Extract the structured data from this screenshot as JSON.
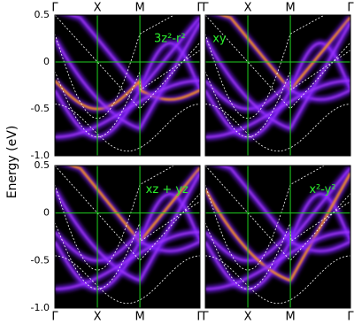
{
  "y_label": "Energy (eV)",
  "chart_data": [
    {
      "type": "spectral",
      "label": "3z²-r²",
      "xaxis": "top",
      "ytick_labels": true,
      "xlim": [
        0,
        1.707
      ],
      "xticks": [
        {
          "value": 0,
          "label": "Γ"
        },
        {
          "value": 0.5,
          "label": "X"
        },
        {
          "value": 1,
          "label": "M"
        },
        {
          "value": 1.707,
          "label": "Γ"
        }
      ],
      "ylim": [
        -1,
        0.5
      ],
      "yticks": [
        0.5,
        0,
        -0.5,
        {
          "value": -1,
          "label": "-1.0"
        }
      ]
    },
    {
      "type": "spectral",
      "label": "xy",
      "xaxis": "top",
      "ytick_labels": false,
      "xlim": [
        0,
        1.707
      ],
      "xticks": [
        {
          "value": 0,
          "label": "Γ"
        },
        {
          "value": 0.5,
          "label": "X"
        },
        {
          "value": 1,
          "label": "M"
        },
        {
          "value": 1.707,
          "label": "Γ"
        }
      ],
      "ylim": [
        -1,
        0.5
      ],
      "yticks": [
        0.5,
        0,
        -0.5,
        {
          "value": -1,
          "label": "-1.0"
        }
      ]
    },
    {
      "type": "spectral",
      "label": "xz + yz",
      "xaxis": "bottom",
      "ytick_labels": true,
      "xlim": [
        0,
        1.707
      ],
      "xticks": [
        {
          "value": 0,
          "label": "Γ"
        },
        {
          "value": 0.5,
          "label": "X"
        },
        {
          "value": 1,
          "label": "M"
        },
        {
          "value": 1.707,
          "label": "Γ"
        }
      ],
      "ylim": [
        -1,
        0.5
      ],
      "yticks": [
        0.5,
        0,
        -0.5,
        {
          "value": -1,
          "label": "-1.0"
        }
      ]
    },
    {
      "type": "spectral",
      "label": "x²-y²",
      "xaxis": "bottom",
      "ytick_labels": false,
      "xlim": [
        0,
        1.707
      ],
      "xticks": [
        {
          "value": 0,
          "label": "Γ"
        },
        {
          "value": 0.5,
          "label": "X"
        },
        {
          "value": 1,
          "label": "M"
        },
        {
          "value": 1.707,
          "label": "Γ"
        }
      ],
      "ylim": [
        -1,
        0.5
      ],
      "yticks": [
        0.5,
        0,
        -0.5,
        {
          "value": -1,
          "label": "-1.0"
        }
      ]
    }
  ]
}
